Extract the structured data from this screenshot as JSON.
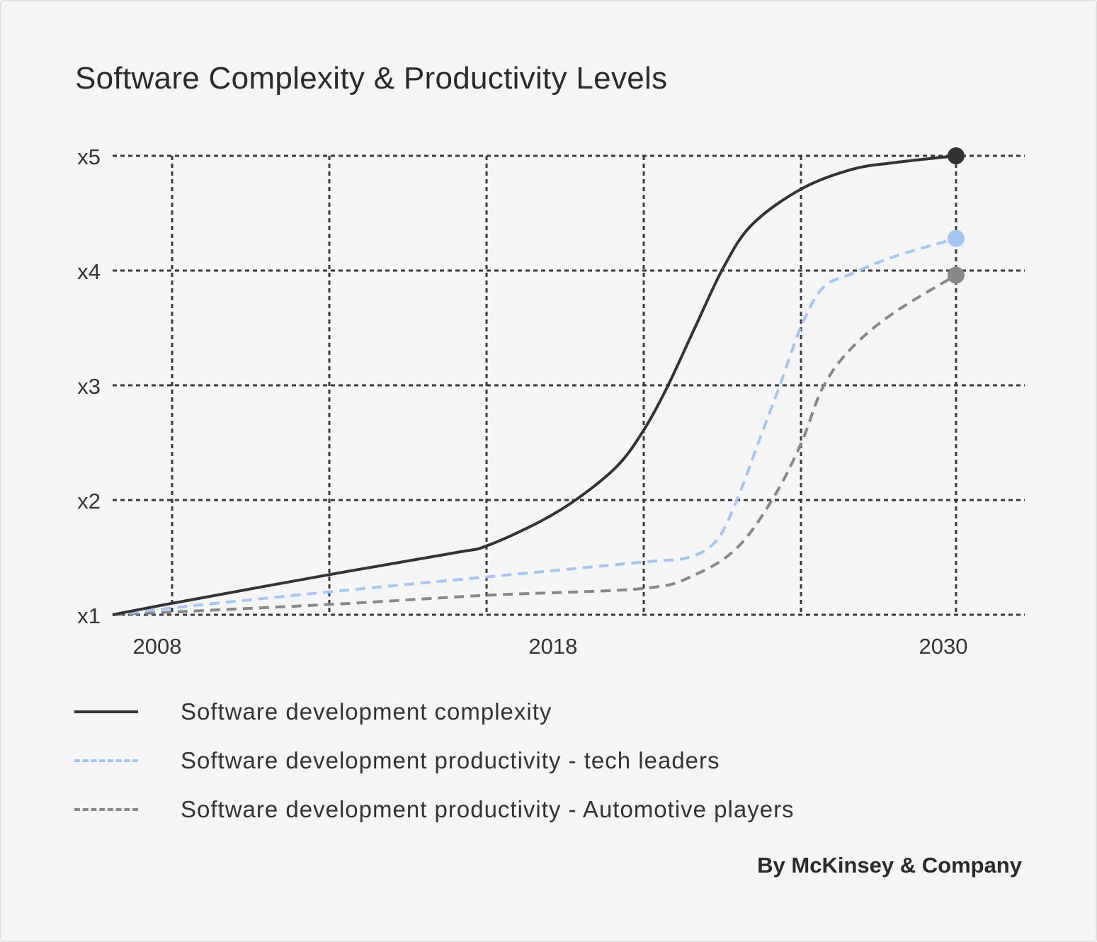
{
  "chart_data": {
    "type": "line",
    "title": "Software Complexity & Productivity Levels",
    "xlabel": "",
    "ylabel": "",
    "xlim": [
      2006.77,
      2031.9
    ],
    "ylim": [
      1,
      5
    ],
    "x_ticks": [
      {
        "label": "2008",
        "x": 2008
      },
      {
        "label": "2018",
        "x": 2018.9
      },
      {
        "label": "2030",
        "x": 2029.65
      }
    ],
    "y_ticks": [
      {
        "label": "x1",
        "y": 1
      },
      {
        "label": "x2",
        "y": 2
      },
      {
        "label": "x3",
        "y": 3
      },
      {
        "label": "x4",
        "y": 4
      },
      {
        "label": "x5",
        "y": 5
      }
    ],
    "v_grid": [
      2008.41,
      2012.74,
      2017.07,
      2021.4,
      2025.73,
      2030.0
    ],
    "grid": true,
    "legend_placement": "bottom",
    "series": [
      {
        "name": "Software development complexity",
        "color": "#333333",
        "style": "solid",
        "end_marker": true,
        "x": [
          2006.77,
          2008.41,
          2012.74,
          2016.19,
          2017.07,
          2018.53,
          2019.61,
          2020.68,
          2021.4,
          2022.04,
          2022.82,
          2023.6,
          2024.38,
          2025.73,
          2027.11,
          2028.28,
          2030.0
        ],
        "y": [
          1.0,
          1.1,
          1.35,
          1.54,
          1.6,
          1.81,
          2.02,
          2.3,
          2.61,
          2.98,
          3.51,
          4.03,
          4.4,
          4.71,
          4.88,
          4.94,
          5.0
        ]
      },
      {
        "name": "Software development productivity - tech leaders",
        "color": "#a3c6f7",
        "style": "dashed",
        "end_marker": true,
        "x": [
          2006.77,
          2008.41,
          2012.74,
          2017.07,
          2021.4,
          2022.63,
          2023.41,
          2023.99,
          2024.58,
          2025.16,
          2025.73,
          2026.33,
          2027.11,
          2028.28,
          2030.0
        ],
        "y": [
          1.0,
          1.06,
          1.2,
          1.33,
          1.46,
          1.5,
          1.65,
          2.02,
          2.52,
          3.01,
          3.51,
          3.85,
          3.97,
          4.12,
          4.28
        ]
      },
      {
        "name": "Software development productivity - Automotive players",
        "color": "#888888",
        "style": "dashed",
        "end_marker": true,
        "x": [
          2006.77,
          2012.74,
          2017.07,
          2021.4,
          2022.82,
          2023.99,
          2024.97,
          2025.73,
          2026.33,
          2027.11,
          2028.28,
          2030.0
        ],
        "y": [
          1.0,
          1.09,
          1.17,
          1.23,
          1.35,
          1.59,
          2.02,
          2.49,
          2.98,
          3.32,
          3.63,
          3.96
        ]
      }
    ],
    "source": "By McKinsey & Company"
  }
}
